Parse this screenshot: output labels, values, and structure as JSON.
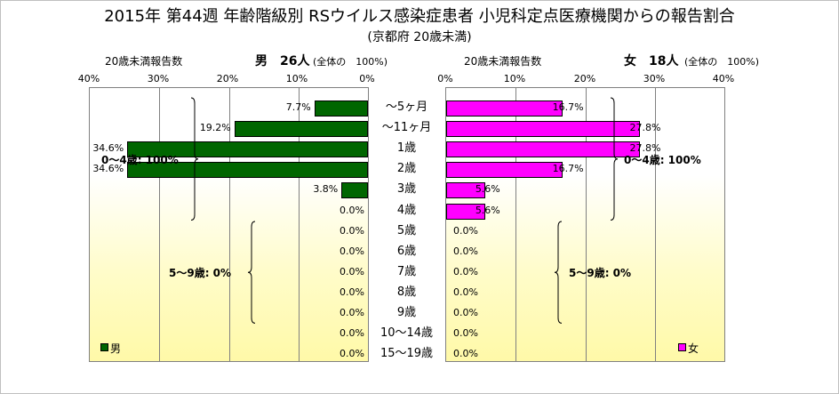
{
  "title": "2015年 第44週 年齢階級別 RSウイルス感染症患者 小児科定点医療機関からの報告割合",
  "subtitle": "(京都府 20歳未満)",
  "chart_data": {
    "type": "bar",
    "orientation": "horizontal-butterfly",
    "categories": [
      "～5ヶ月",
      "～11ヶ月",
      "1歳",
      "2歳",
      "3歳",
      "4歳",
      "5歳",
      "6歳",
      "7歳",
      "8歳",
      "9歳",
      "10～14歳",
      "15～19歳"
    ],
    "xlim": [
      0,
      40
    ],
    "ticks": [
      "0%",
      "10%",
      "20%",
      "30%",
      "40%"
    ],
    "grid": true,
    "series": [
      {
        "name": "男",
        "side": "left",
        "color": "#006600",
        "header_caption": "20歳未満報告数",
        "header_title": "男　26人",
        "header_note": "(全体の　100%)",
        "values": [
          7.7,
          19.2,
          34.6,
          34.6,
          3.8,
          0.0,
          0.0,
          0.0,
          0.0,
          0.0,
          0.0,
          0.0,
          0.0
        ],
        "labels": [
          "7.7%",
          "19.2%",
          "34.6%",
          "34.6%",
          "3.8%",
          "0.0%",
          "0.0%",
          "0.0%",
          "0.0%",
          "0.0%",
          "0.0%",
          "0.0%",
          "0.0%"
        ],
        "groups": [
          {
            "label": "0～4歳: 100%",
            "from": 0,
            "to": 5
          },
          {
            "label": "5～9歳: 0%",
            "from": 6,
            "to": 10
          }
        ]
      },
      {
        "name": "女",
        "side": "right",
        "color": "#ff00ff",
        "header_caption": "20歳未満報告数",
        "header_title": "女　18人",
        "header_note": "(全体の　100%)",
        "values": [
          16.7,
          27.8,
          27.8,
          16.7,
          5.6,
          5.6,
          0.0,
          0.0,
          0.0,
          0.0,
          0.0,
          0.0,
          0.0
        ],
        "labels": [
          "16.7%",
          "27.8%",
          "27.8%",
          "16.7%",
          "5.6%",
          "5.6%",
          "0.0%",
          "0.0%",
          "0.0%",
          "0.0%",
          "0.0%",
          "0.0%",
          "0.0%"
        ],
        "groups": [
          {
            "label": "0～4歳: 100%",
            "from": 0,
            "to": 5
          },
          {
            "label": "5～9歳: 0%",
            "from": 6,
            "to": 10
          }
        ]
      }
    ]
  }
}
